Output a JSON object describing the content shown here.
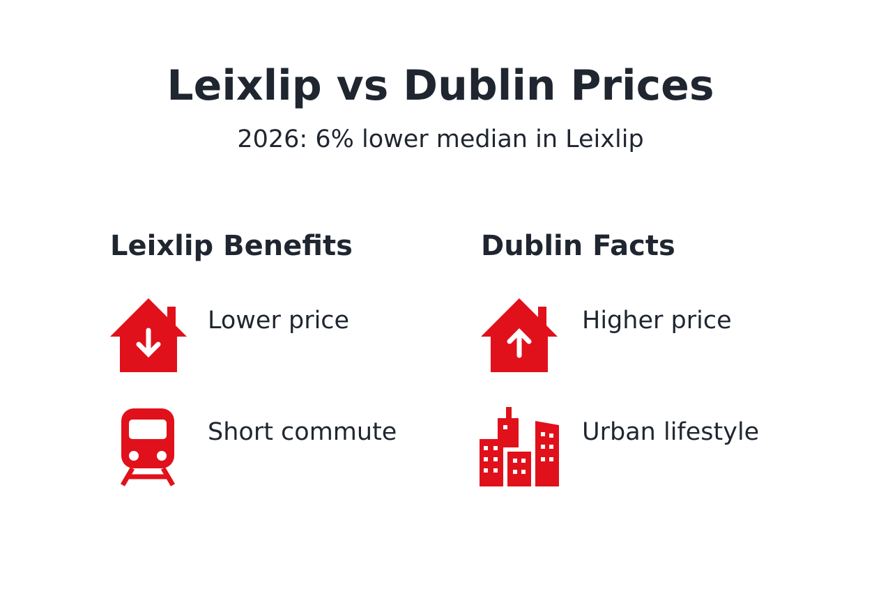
{
  "header": {
    "title": "Leixlip vs Dublin Prices",
    "subtitle": "2026: 6% lower median in Leixlip"
  },
  "columns": [
    {
      "heading": "Leixlip Benefits",
      "items": [
        {
          "label": "Lower price"
        },
        {
          "label": "Short commute"
        }
      ]
    },
    {
      "heading": "Dublin Facts",
      "items": [
        {
          "label": "Higher price"
        },
        {
          "label": "Urban lifestyle"
        }
      ]
    }
  ]
}
